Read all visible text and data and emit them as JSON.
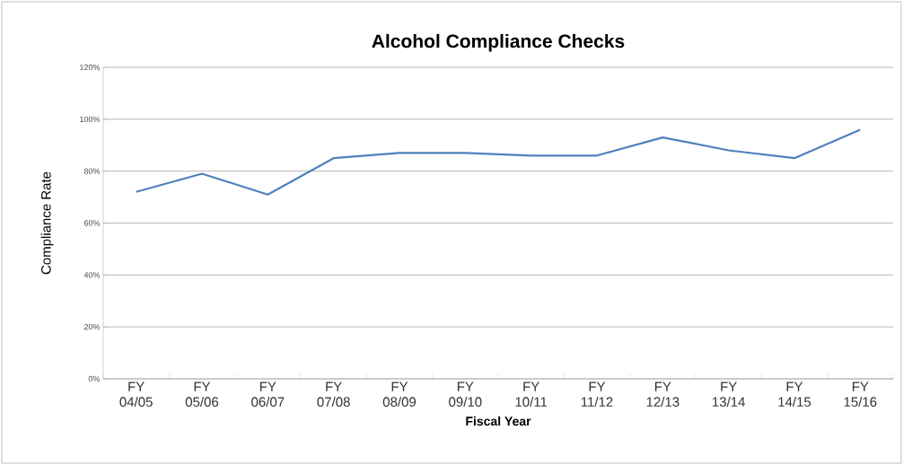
{
  "chart_data": {
    "type": "line",
    "title": "Alcohol Compliance Checks",
    "xlabel": "Fiscal Year",
    "ylabel": "Compliance Rate",
    "categories": [
      "FY 04/05",
      "FY 05/06",
      "FY 06/07",
      "FY 07/08",
      "FY 08/09",
      "FY 09/10",
      "FY 10/11",
      "FY 11/12",
      "FY 12/13",
      "FY 13/14",
      "FY 14/15",
      "FY 15/16"
    ],
    "series": [
      {
        "color": "#4f81bd",
        "values": [
          72,
          79,
          71,
          85,
          87,
          87,
          86,
          86,
          93,
          88,
          85,
          96
        ]
      }
    ],
    "ylim": [
      0,
      120
    ],
    "yticks": [
      {
        "value": 0,
        "label": "0%"
      },
      {
        "value": 20,
        "label": "20%"
      },
      {
        "value": 40,
        "label": "40%"
      },
      {
        "value": 60,
        "label": "60%"
      },
      {
        "value": 80,
        "label": "80%"
      },
      {
        "value": 100,
        "label": "100%"
      },
      {
        "value": 120,
        "label": "120%"
      }
    ],
    "grid": "y",
    "marker": "none",
    "line_style": "solid"
  }
}
